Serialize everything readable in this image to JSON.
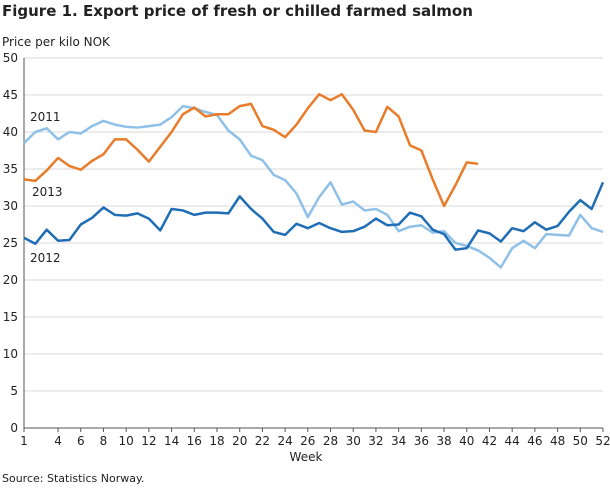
{
  "chart_data": {
    "type": "line",
    "title": "Figure 1. Export price of fresh or chilled farmed salmon",
    "y_label": "Price per kilo NOK",
    "x_label": "Week",
    "source": "Source: Statistics Norway.",
    "x": [
      1,
      2,
      3,
      4,
      5,
      6,
      7,
      8,
      9,
      10,
      11,
      12,
      13,
      14,
      15,
      16,
      17,
      18,
      19,
      20,
      21,
      22,
      23,
      24,
      25,
      26,
      27,
      28,
      29,
      30,
      31,
      32,
      33,
      34,
      35,
      36,
      37,
      38,
      39,
      40,
      41,
      42,
      43,
      44,
      45,
      46,
      47,
      48,
      49,
      50,
      51,
      52
    ],
    "xlim": [
      1,
      52
    ],
    "xticks": [
      1,
      4,
      6,
      8,
      10,
      12,
      14,
      16,
      18,
      20,
      22,
      24,
      26,
      28,
      30,
      32,
      34,
      36,
      38,
      40,
      42,
      44,
      46,
      48,
      50,
      52
    ],
    "ylim": [
      0,
      50
    ],
    "yticks": [
      0,
      5,
      10,
      15,
      20,
      25,
      30,
      35,
      40,
      45,
      50
    ],
    "grid": true,
    "series": [
      {
        "name": "2011",
        "color": "#8fc0e8",
        "values": [
          38.5,
          40,
          40.5,
          39,
          40,
          39.8,
          40.8,
          41.5,
          41,
          40.7,
          40.6,
          40.8,
          41,
          42,
          43.5,
          43.2,
          42.7,
          42.3,
          40.2,
          39,
          36.8,
          36.2,
          34.2,
          33.5,
          31.7,
          28.5,
          31.2,
          33.2,
          30.2,
          30.6,
          29.4,
          29.6,
          28.8,
          26.6,
          27.2,
          27.4,
          26.4,
          26.6,
          25,
          24.6,
          24,
          23,
          21.7,
          24.3,
          25.3,
          24.3,
          26.2,
          26.1,
          26,
          28.8,
          27,
          26.5
        ]
      },
      {
        "name": "2012",
        "color": "#1f6db5",
        "values": [
          25.7,
          24.9,
          26.8,
          25.3,
          25.4,
          27.5,
          28.4,
          29.8,
          28.8,
          28.7,
          29,
          28.3,
          26.7,
          29.6,
          29.4,
          28.8,
          29.1,
          29.1,
          29,
          31.3,
          29.6,
          28.3,
          26.5,
          26.1,
          27.6,
          27,
          27.7,
          27,
          26.5,
          26.6,
          27.2,
          28.3,
          27.4,
          27.5,
          29.1,
          28.6,
          26.8,
          26.2,
          24.1,
          24.3,
          26.7,
          26.3,
          25.2,
          27,
          26.6,
          27.8,
          26.8,
          27.3,
          29.2,
          30.8,
          29.6,
          33.2
        ]
      },
      {
        "name": "2013",
        "color": "#e87c2a",
        "values": [
          33.6,
          33.4,
          34.8,
          36.5,
          35.4,
          34.9,
          36.1,
          37,
          39,
          39,
          37.6,
          36,
          38,
          40,
          42.4,
          43.3,
          42.1,
          42.4,
          42.4,
          43.5,
          43.8,
          40.8,
          40.3,
          39.3,
          41,
          43.2,
          45.1,
          44.3,
          45.1,
          43,
          40.2,
          40,
          43.4,
          42.1,
          38.2,
          37.5,
          33.6,
          30,
          32.8,
          35.9,
          35.7,
          null,
          null,
          null,
          null,
          null,
          null,
          null,
          null,
          null,
          null,
          null
        ]
      }
    ]
  }
}
